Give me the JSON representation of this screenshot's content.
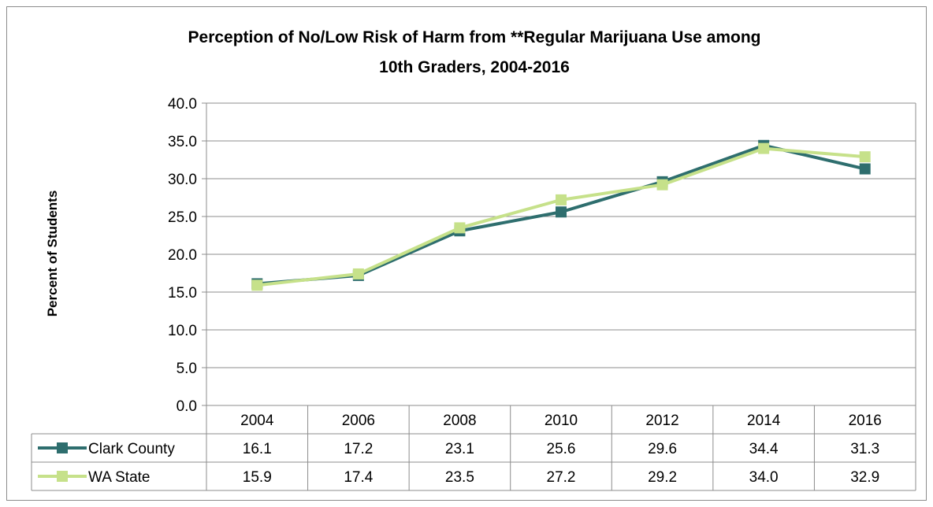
{
  "chart_data": {
    "type": "line",
    "title_line1": "Perception of No/Low Risk of Harm from **Regular Marijuana Use among",
    "title_line2": "10th Graders, 2004-2016",
    "xlabel": "",
    "ylabel": "Percent of Students",
    "ylim": [
      0,
      40
    ],
    "yticks": [
      "0.0",
      "5.0",
      "10.0",
      "15.0",
      "20.0",
      "25.0",
      "30.0",
      "35.0",
      "40.0"
    ],
    "grid": true,
    "legend": "data-table",
    "categories": [
      "2004",
      "2006",
      "2008",
      "2010",
      "2012",
      "2014",
      "2016"
    ],
    "series": [
      {
        "name": "Clark County",
        "values": [
          16.1,
          17.2,
          23.1,
          25.6,
          29.6,
          34.4,
          31.3
        ],
        "labels": [
          "16.1",
          "17.2",
          "23.1",
          "25.6",
          "29.6",
          "34.4",
          "31.3"
        ],
        "color": "#2e6e6e"
      },
      {
        "name": "WA State",
        "values": [
          15.9,
          17.4,
          23.5,
          27.2,
          29.2,
          34.0,
          32.9
        ],
        "labels": [
          "15.9",
          "17.4",
          "23.5",
          "27.2",
          "29.2",
          "34.0",
          "32.9"
        ],
        "color": "#c6e18a"
      }
    ]
  }
}
